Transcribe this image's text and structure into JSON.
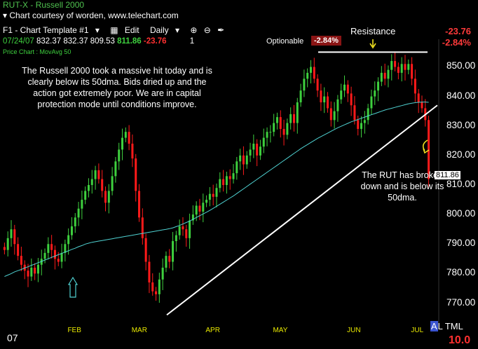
{
  "header": {
    "symbol": "RUT-X",
    "separator": "-",
    "name": "Russell 2000",
    "courtesy": "Chart courtesy of worden, www.telechart.com",
    "toolbar": {
      "template": "F1 - Chart Template #1",
      "edit": "Edit",
      "period": "Daily"
    },
    "quote": {
      "date": "07/24/07",
      "open": "832.37",
      "high": "832.37",
      "low": "809.53",
      "close": "811.86",
      "change": "-23.76",
      "volume": "1"
    },
    "optionable_label": "Optionable",
    "pct_badge": "-2.84%",
    "change_right": "-23.76",
    "pct_right": "-2.84%",
    "indicator_label": "Price Chart : MovAvg 50"
  },
  "colors": {
    "up": "#3ed03e",
    "down": "#ff1a1a",
    "ma": "#4fd2d2",
    "trendline": "#ffffff",
    "axis_labels": "#e8e800",
    "background": "#000000"
  },
  "chart_data": {
    "type": "candlestick",
    "ylim": [
      763,
      857
    ],
    "yticks": [
      850,
      840,
      830,
      820,
      810,
      800,
      790,
      780,
      770
    ],
    "yticks_label": [
      "850.00",
      "840.00",
      "830.00",
      "820.00",
      "810.00",
      "800.00",
      "790.00",
      "780.00",
      "770.00"
    ],
    "months": [
      "07",
      "FEB",
      "MAR",
      "APR",
      "MAY",
      "JUN",
      "JUL"
    ],
    "last_price": "811.86",
    "resistance": {
      "label": "Resistance",
      "level": 855
    },
    "trendline": {
      "from": {
        "x": "Mar 5",
        "y": 766
      },
      "to": {
        "x": "Jul 24",
        "y": 837
      }
    },
    "annotations": [
      "The Russell 2000 took a massive hit today and is clearly below its 50dma. Bids dried up and the action got extremely poor. We are in capital protection mode until conditions improve.",
      "The RUT has broken down and is below its 50dma."
    ],
    "closes": [
      788,
      792,
      795,
      790,
      786,
      783,
      781,
      779,
      782,
      780,
      783,
      785,
      787,
      790,
      788,
      785,
      784,
      787,
      790,
      793,
      796,
      799,
      802,
      805,
      808,
      810,
      812,
      815,
      812,
      808,
      804,
      808,
      813,
      818,
      822,
      826,
      828,
      824,
      819,
      808,
      799,
      792,
      784,
      777,
      774,
      773,
      778,
      782,
      786,
      784,
      791,
      793,
      796,
      795,
      792,
      798,
      800,
      803,
      801,
      804,
      805,
      807,
      806,
      809,
      812,
      810,
      813,
      812,
      814,
      818,
      820,
      817,
      820,
      822,
      824,
      820,
      823,
      826,
      828,
      828,
      831,
      833,
      829,
      827,
      831,
      834,
      831,
      838,
      842,
      846,
      848,
      850,
      846,
      842,
      838,
      840,
      836,
      832,
      835,
      839,
      842,
      844,
      841,
      837,
      832,
      829,
      831,
      832,
      836,
      840,
      842,
      845,
      848,
      846,
      849,
      852,
      850,
      848,
      851,
      849,
      851,
      846,
      841,
      838,
      836,
      832,
      812
    ],
    "ma50": [
      779,
      779.5,
      780,
      780.6,
      781,
      781.4,
      781.9,
      782.3,
      782.8,
      783.2,
      783.7,
      784.1,
      784.6,
      785,
      785.5,
      785.9,
      786.4,
      786.8,
      787.3,
      787.7,
      788.2,
      788.6,
      789.1,
      789.5,
      790,
      790.3,
      790.6,
      790.8,
      791,
      791.2,
      791.4,
      791.6,
      791.8,
      792,
      792.2,
      792.4,
      792.6,
      792.8,
      793,
      793.2,
      793.4,
      793.6,
      793.8,
      794,
      794.2,
      794.4,
      794.6,
      794.8,
      795,
      795.2,
      795.5,
      795.9,
      796.3,
      796.8,
      797.3,
      797.8,
      798.4,
      799,
      799.6,
      800.2,
      800.8,
      801.4,
      802.1,
      802.8,
      803.5,
      804.2,
      804.9,
      805.6,
      806.3,
      807.1,
      807.9,
      808.7,
      809.5,
      810.3,
      811.1,
      811.9,
      812.7,
      813.5,
      814.3,
      815.1,
      815.9,
      816.7,
      817.5,
      818.3,
      819.1,
      819.9,
      820.7,
      821.5,
      822.3,
      823,
      823.7,
      824.4,
      825.1,
      825.8,
      826.4,
      827,
      827.6,
      828.2,
      828.8,
      829.4,
      829.9,
      830.4,
      830.9,
      831.4,
      831.8,
      832.2,
      832.6,
      833,
      833.4,
      833.8,
      834.2,
      834.6,
      835,
      835.4,
      835.7,
      836,
      836.3,
      836.6,
      836.9,
      837.2,
      837.5,
      837.7,
      837.9,
      838,
      838.1,
      838.1,
      838
    ]
  },
  "footer": {
    "year": "07",
    "a_label": "A",
    "l_label": "L",
    "tml": "TML",
    "score": "10.0"
  }
}
